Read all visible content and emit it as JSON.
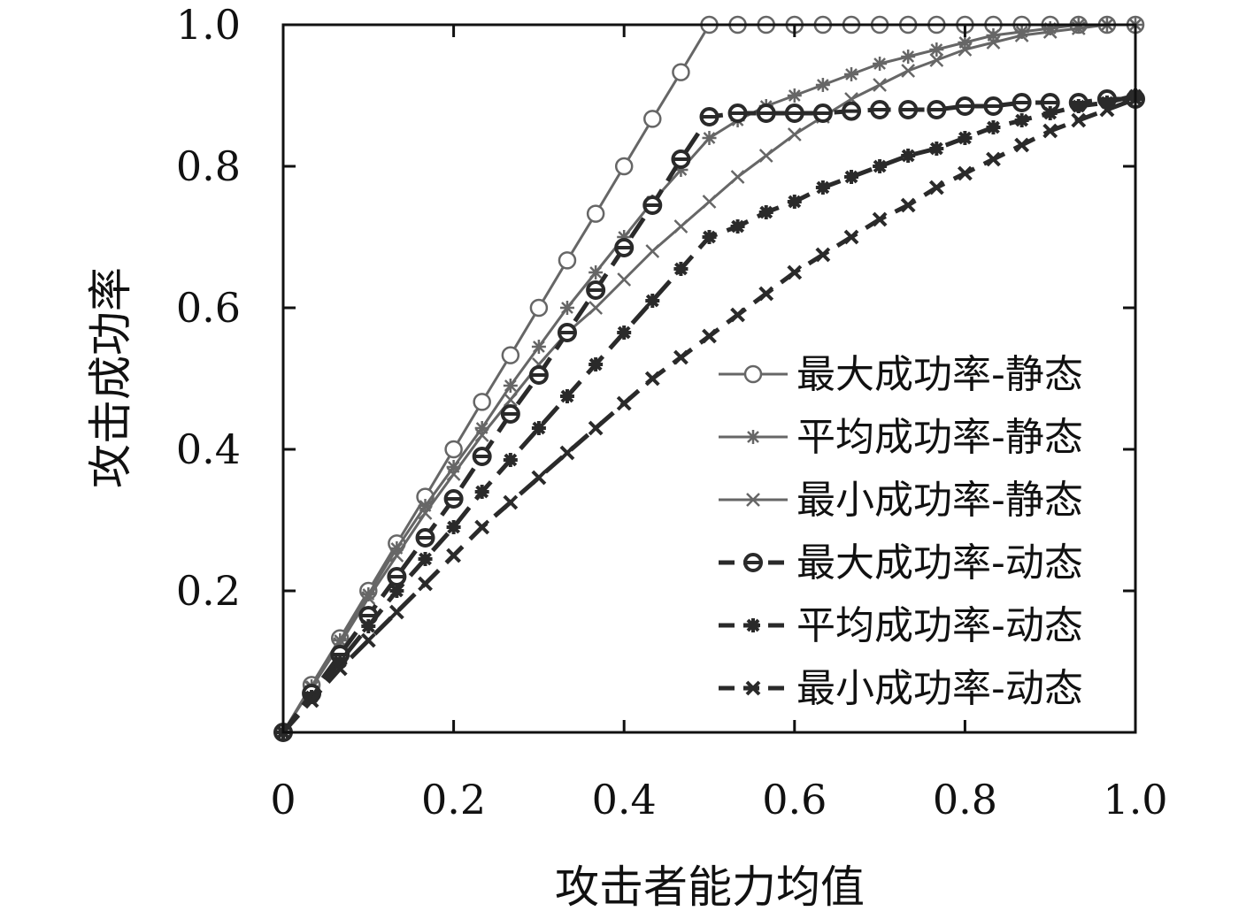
{
  "chart_data": {
    "type": "line",
    "xlabel": "攻击者能力均值",
    "ylabel": "攻击成功率",
    "xlim": [
      0,
      1.0
    ],
    "ylim": [
      0,
      1.0
    ],
    "xticks": [
      "0",
      "0.2",
      "0.4",
      "0.6",
      "0.8",
      "1.0"
    ],
    "yticks": [
      "0.2",
      "0.4",
      "0.6",
      "0.8",
      "1.0"
    ],
    "legend_position": "right",
    "x": [
      0,
      0.0333,
      0.0667,
      0.1,
      0.1333,
      0.1667,
      0.2,
      0.2333,
      0.2667,
      0.3,
      0.3333,
      0.3667,
      0.4,
      0.4333,
      0.4667,
      0.5,
      0.5333,
      0.5667,
      0.6,
      0.6333,
      0.6667,
      0.7,
      0.7333,
      0.7667,
      0.8,
      0.8333,
      0.8667,
      0.9,
      0.9333,
      0.9667,
      1.0
    ],
    "series": [
      {
        "name": "最大成功率-静态",
        "color": "#666666",
        "style": "solid",
        "marker": "circle",
        "values": [
          0.0,
          0.067,
          0.133,
          0.2,
          0.267,
          0.333,
          0.4,
          0.467,
          0.533,
          0.6,
          0.667,
          0.733,
          0.8,
          0.867,
          0.933,
          1.0,
          1.0,
          1.0,
          1.0,
          1.0,
          1.0,
          1.0,
          1.0,
          1.0,
          1.0,
          1.0,
          1.0,
          1.0,
          1.0,
          1.0,
          1.0
        ]
      },
      {
        "name": "平均成功率-静态",
        "color": "#666666",
        "style": "solid",
        "marker": "asterisk",
        "values": [
          0.0,
          0.065,
          0.13,
          0.195,
          0.26,
          0.32,
          0.375,
          0.43,
          0.49,
          0.545,
          0.6,
          0.65,
          0.7,
          0.75,
          0.795,
          0.84,
          0.865,
          0.885,
          0.9,
          0.915,
          0.93,
          0.945,
          0.955,
          0.965,
          0.975,
          0.985,
          0.99,
          0.995,
          1.0,
          1.0,
          1.0
        ]
      },
      {
        "name": "最小成功率-静态",
        "color": "#666666",
        "style": "solid",
        "marker": "x",
        "values": [
          0.0,
          0.063,
          0.125,
          0.19,
          0.25,
          0.31,
          0.365,
          0.42,
          0.47,
          0.52,
          0.565,
          0.6,
          0.64,
          0.68,
          0.715,
          0.75,
          0.785,
          0.815,
          0.845,
          0.87,
          0.895,
          0.915,
          0.935,
          0.95,
          0.965,
          0.975,
          0.985,
          0.99,
          0.995,
          1.0,
          1.0
        ]
      },
      {
        "name": "最大成功率-动态",
        "color": "#2a2a2a",
        "style": "dashed",
        "marker": "circle-bar",
        "values": [
          0.0,
          0.055,
          0.11,
          0.165,
          0.22,
          0.275,
          0.33,
          0.39,
          0.45,
          0.505,
          0.565,
          0.625,
          0.685,
          0.745,
          0.81,
          0.87,
          0.875,
          0.875,
          0.875,
          0.875,
          0.878,
          0.88,
          0.88,
          0.88,
          0.885,
          0.885,
          0.89,
          0.89,
          0.89,
          0.895,
          0.895
        ]
      },
      {
        "name": "平均成功率-动态",
        "color": "#2a2a2a",
        "style": "dashed",
        "marker": "asterisk",
        "values": [
          0.0,
          0.05,
          0.1,
          0.15,
          0.2,
          0.245,
          0.29,
          0.34,
          0.385,
          0.43,
          0.475,
          0.52,
          0.565,
          0.61,
          0.655,
          0.7,
          0.715,
          0.735,
          0.75,
          0.77,
          0.785,
          0.8,
          0.815,
          0.825,
          0.84,
          0.855,
          0.865,
          0.875,
          0.885,
          0.89,
          0.9
        ]
      },
      {
        "name": "最小成功率-动态",
        "color": "#2a2a2a",
        "style": "dashed",
        "marker": "x",
        "values": [
          0.0,
          0.045,
          0.09,
          0.13,
          0.17,
          0.21,
          0.25,
          0.29,
          0.325,
          0.36,
          0.395,
          0.43,
          0.465,
          0.5,
          0.53,
          0.56,
          0.59,
          0.62,
          0.65,
          0.675,
          0.7,
          0.725,
          0.745,
          0.77,
          0.79,
          0.81,
          0.83,
          0.85,
          0.865,
          0.88,
          0.895
        ]
      }
    ]
  }
}
